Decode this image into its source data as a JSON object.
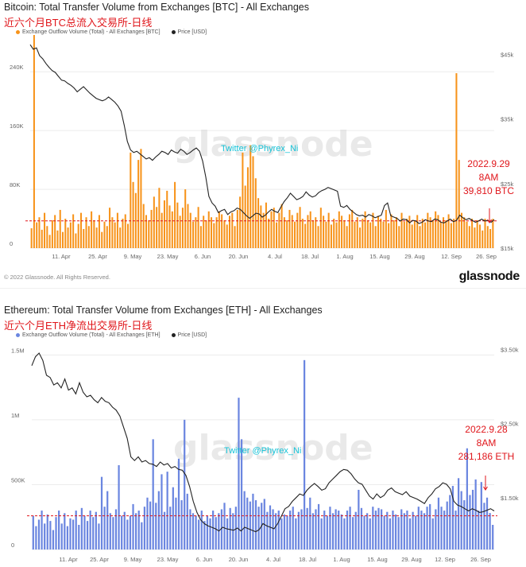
{
  "panels": {
    "btc": {
      "title": "Bitcoin: Total Transfer Volume from Exchanges [BTC] - All Exchanges",
      "subtitle": "近六个月BTC总流入交易所-日线",
      "legend": {
        "series1": "Exchange Outflow Volume (Total) - All Exchanges [BTC]",
        "series2": "Price [USD]"
      },
      "watermark": "glassnode",
      "twitter": "Twitter @Phyrex_Ni",
      "annotation": [
        "2022.9.29",
        "8AM",
        "39,810 BTC"
      ],
      "footer": {
        "copyright": "© 2022 Glassnode. All Rights Reserved.",
        "brand": "glassnode"
      }
    },
    "eth": {
      "title": "Ethereum: Total Transfer Volume from Exchanges [ETH] - All Exchanges",
      "subtitle": "近六个月ETH净流出交易所-日线",
      "legend": {
        "series1": "Exchange Outflow Volume (Total) - All Exchanges [ETH]",
        "series2": "Price [USD]"
      },
      "watermark": "glassnode",
      "twitter": "Twitter @Phyrex_Ni",
      "annotation": [
        "2022.9.28",
        "8AM",
        "281,186 ETH"
      ]
    }
  },
  "colors": {
    "btc_bar": "#f7931a",
    "eth_bar": "#6b86e0",
    "price": "#222222",
    "dashed": "#e0161b",
    "annotation": "#e0161b"
  },
  "chart_data": [
    {
      "type": "bar",
      "title": "Bitcoin: Total Transfer Volume from Exchanges [BTC] - All Exchanges",
      "x_ticks": [
        "11. Apr",
        "25. Apr",
        "9. May",
        "23. May",
        "6. Jun",
        "20. Jun",
        "4. Jul",
        "18. Jul",
        "1. Aug",
        "15. Aug",
        "29. Aug",
        "12. Sep",
        "26. Sep"
      ],
      "y_left_ticks": [
        "0",
        "80K",
        "160K",
        "240K"
      ],
      "y_left_range": [
        0,
        290000
      ],
      "y_right_ticks": [
        "$15k",
        "$25k",
        "$35k",
        "$45k"
      ],
      "y_right_range": [
        15000,
        48000
      ],
      "reference_line": 37000,
      "series": [
        {
          "name": "Exchange Outflow Volume (Total) - All Exchanges [BTC]",
          "kind": "bar",
          "color": "#f7931a",
          "values": [
            27000,
            290000,
            35000,
            42000,
            25000,
            48000,
            30000,
            18000,
            38000,
            45000,
            24000,
            52000,
            22000,
            40000,
            28000,
            35000,
            46000,
            20000,
            33000,
            48000,
            26000,
            42000,
            30000,
            50000,
            38000,
            28000,
            45000,
            22000,
            36000,
            30000,
            55000,
            42000,
            35000,
            48000,
            28000,
            40000,
            46000,
            33000,
            130000,
            90000,
            75000,
            120000,
            135000,
            60000,
            45000,
            38000,
            52000,
            70000,
            56000,
            82000,
            48000,
            65000,
            78000,
            58000,
            50000,
            90000,
            62000,
            44000,
            55000,
            80000,
            60000,
            48000,
            36000,
            42000,
            56000,
            30000,
            44000,
            38000,
            50000,
            42000,
            34000,
            42000,
            50000,
            46000,
            38000,
            32000,
            44000,
            48000,
            30000,
            52000,
            70000,
            130000,
            85000,
            110000,
            140000,
            125000,
            95000,
            68000,
            58000,
            48000,
            62000,
            40000,
            50000,
            55000,
            35000,
            48000,
            60000,
            42000,
            38000,
            52000,
            45000,
            36000,
            48000,
            56000,
            40000,
            33000,
            45000,
            50000,
            38000,
            42000,
            30000,
            55000,
            44000,
            36000,
            48000,
            32000,
            40000,
            35000,
            50000,
            44000,
            38000,
            30000,
            46000,
            52000,
            36000,
            42000,
            28000,
            40000,
            50000,
            38000,
            35000,
            48000,
            30000,
            44000,
            40000,
            36000,
            52000,
            34000,
            46000,
            38000,
            42000,
            30000,
            48000,
            36000,
            40000,
            44000,
            32000,
            38000,
            45000,
            30000,
            40000,
            35000,
            48000,
            42000,
            38000,
            50000,
            45000,
            36000,
            42000,
            38000,
            46000,
            34000,
            40000,
            238000,
            120000,
            48000,
            42000,
            36000,
            30000,
            40000,
            28000,
            38000,
            32000,
            24000,
            40000,
            30000,
            26000,
            39810
          ]
        },
        {
          "name": "Price [USD]",
          "kind": "line",
          "color": "#222222",
          "values": [
            46500,
            45800,
            46000,
            44800,
            44300,
            43600,
            43000,
            42500,
            42200,
            41600,
            41000,
            40900,
            40500,
            40200,
            39800,
            39200,
            39600,
            40000,
            39500,
            39000,
            38600,
            38200,
            38000,
            37800,
            38000,
            38400,
            38000,
            37600,
            37000,
            36200,
            34000,
            31500,
            30200,
            29800,
            30000,
            29600,
            29200,
            28800,
            29000,
            28600,
            29100,
            29500,
            30000,
            29800,
            29500,
            30200,
            29900,
            29700,
            30300,
            30000,
            29500,
            29800,
            30200,
            30500,
            30000,
            28500,
            26000,
            23000,
            22000,
            21500,
            20500,
            20800,
            21000,
            20200,
            20600,
            20800,
            21200,
            21000,
            20500,
            20000,
            19600,
            20000,
            20400,
            20300,
            19800,
            20100,
            20600,
            21000,
            20700,
            20500,
            21400,
            22200,
            22800,
            23500,
            23000,
            22500,
            22700,
            23000,
            23700,
            23200,
            22900,
            23100,
            23600,
            23900,
            24100,
            24400,
            24200,
            24000,
            23800,
            21500,
            21300,
            21600,
            21000,
            20600,
            20200,
            20000,
            20100,
            19800,
            20200,
            20000,
            19700,
            19900,
            20100,
            21600,
            22000,
            20000,
            19800,
            19600,
            19200,
            19500,
            19400,
            18900,
            19300,
            19200,
            18800,
            19000,
            19400,
            19200,
            19100,
            19500,
            19400,
            19000,
            18900,
            19200,
            19500,
            19100,
            19300,
            20100,
            19700,
            19400,
            19600,
            19300,
            19000,
            19200,
            19500,
            19200,
            19300,
            19000,
            19400
          ]
        }
      ]
    },
    {
      "type": "bar",
      "title": "Ethereum: Total Transfer Volume from Exchanges [ETH] - All Exchanges",
      "x_ticks": [
        "11. Apr",
        "25. Apr",
        "9. May",
        "23. May",
        "6. Jun",
        "20. Jun",
        "4. Jul",
        "18. Jul",
        "1. Aug",
        "15. Aug",
        "29. Aug",
        "12. Sep",
        "26. Sep"
      ],
      "y_left_ticks": [
        "0",
        "500K",
        "1M",
        "1.5M"
      ],
      "y_left_range": [
        0,
        1600000
      ],
      "y_right_ticks": [
        "$1.50k",
        "$2.50k",
        "$3.50k"
      ],
      "y_right_range": [
        800,
        3600
      ],
      "reference_line": 260000,
      "series": [
        {
          "name": "Exchange Outflow Volume (Total) - All Exchanges [ETH]",
          "kind": "bar",
          "color": "#6b86e0",
          "values": [
            260000,
            180000,
            230000,
            300000,
            200000,
            270000,
            220000,
            150000,
            250000,
            300000,
            200000,
            280000,
            180000,
            240000,
            230000,
            300000,
            190000,
            320000,
            260000,
            220000,
            300000,
            250000,
            290000,
            200000,
            560000,
            330000,
            450000,
            280000,
            250000,
            310000,
            650000,
            260000,
            290000,
            230000,
            260000,
            350000,
            280000,
            300000,
            210000,
            330000,
            400000,
            370000,
            850000,
            360000,
            450000,
            580000,
            290000,
            600000,
            330000,
            480000,
            400000,
            700000,
            380000,
            1000000,
            430000,
            310000,
            280000,
            260000,
            230000,
            300000,
            220000,
            260000,
            240000,
            300000,
            250000,
            280000,
            310000,
            360000,
            240000,
            320000,
            280000,
            330000,
            1170000,
            850000,
            450000,
            400000,
            370000,
            430000,
            380000,
            330000,
            360000,
            390000,
            290000,
            340000,
            310000,
            280000,
            300000,
            240000,
            270000,
            260000,
            300000,
            330000,
            240000,
            290000,
            310000,
            1460000,
            320000,
            400000,
            280000,
            310000,
            350000,
            240000,
            300000,
            260000,
            330000,
            280000,
            310000,
            300000,
            270000,
            240000,
            300000,
            330000,
            250000,
            290000,
            460000,
            320000,
            260000,
            280000,
            240000,
            330000,
            300000,
            320000,
            310000,
            260000,
            290000,
            240000,
            300000,
            270000,
            250000,
            310000,
            280000,
            300000,
            240000,
            290000,
            260000,
            330000,
            300000,
            280000,
            330000,
            350000,
            240000,
            310000,
            400000,
            330000,
            300000,
            370000,
            420000,
            490000,
            300000,
            550000,
            450000,
            380000,
            780000,
            420000,
            460000,
            540000,
            300000,
            520000,
            360000,
            400000,
            281186,
            190000
          ]
        },
        {
          "name": "Price [USD]",
          "kind": "line",
          "color": "#222222",
          "values": [
            3280,
            3400,
            3450,
            3350,
            3150,
            3120,
            3020,
            3050,
            2980,
            3100,
            2950,
            2980,
            2900,
            3050,
            2920,
            2860,
            2880,
            2820,
            2780,
            2850,
            2800,
            2780,
            2720,
            2680,
            2600,
            2450,
            2300,
            2050,
            2000,
            2050,
            1980,
            2000,
            1960,
            1950,
            1920,
            1980,
            1940,
            1960,
            1900,
            1920,
            1880,
            1870,
            1800,
            1650,
            1450,
            1300,
            1200,
            1150,
            1120,
            1100,
            1080,
            1050,
            1100,
            1080,
            1070,
            1060,
            1090,
            1050,
            1100,
            1080,
            1060,
            1040,
            1070,
            1150,
            1120,
            1100,
            1080,
            1150,
            1250,
            1350,
            1380,
            1450,
            1500,
            1550,
            1530,
            1600,
            1650,
            1690,
            1650,
            1600,
            1620,
            1700,
            1750,
            1800,
            1850,
            1880,
            1870,
            1820,
            1750,
            1700,
            1680,
            1600,
            1520,
            1480,
            1550,
            1500,
            1530,
            1600,
            1630,
            1580,
            1560,
            1540,
            1580,
            1520,
            1500,
            1480,
            1450,
            1420,
            1500,
            1550,
            1620,
            1650,
            1700,
            1680,
            1620,
            1450,
            1400,
            1380,
            1350,
            1320,
            1350,
            1330,
            1300,
            1310,
            1330,
            1350,
            1320
          ]
        }
      ]
    }
  ]
}
